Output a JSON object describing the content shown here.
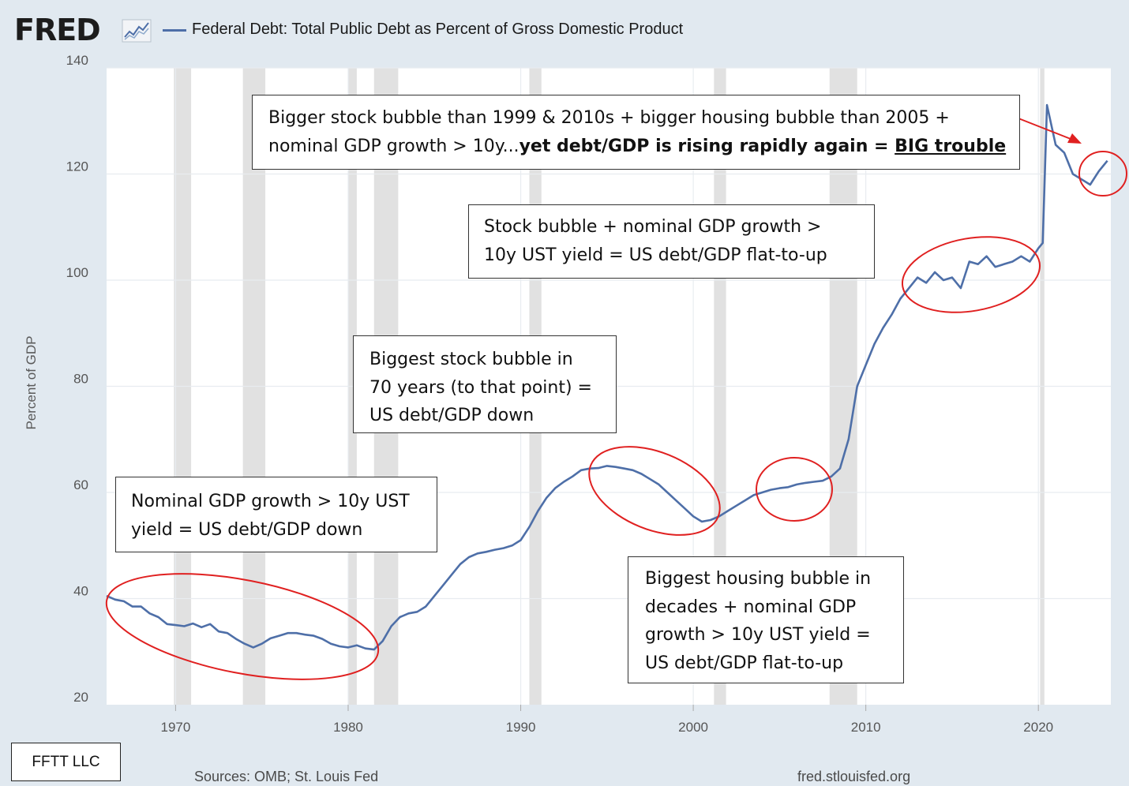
{
  "brand": {
    "logo": "FRED"
  },
  "chart_data": {
    "type": "line",
    "title": "Federal Debt: Total Public Debt as Percent of Gross Domestic Product",
    "xlabel": "",
    "ylabel": "Percent of GDP",
    "xlim": [
      1966,
      2024.2
    ],
    "ylim": [
      20,
      140
    ],
    "x_ticks": [
      1970,
      1980,
      1990,
      2000,
      2010,
      2020
    ],
    "y_ticks": [
      20,
      40,
      60,
      80,
      100,
      120,
      140
    ],
    "grid": true,
    "series": [
      {
        "name": "Federal Debt: Total Public Debt as Percent of Gross Domestic Product",
        "color": "#4e6fa8",
        "x": [
          1966.0,
          1966.5,
          1967.0,
          1967.5,
          1968.0,
          1968.5,
          1969.0,
          1969.5,
          1970.0,
          1970.5,
          1971.0,
          1971.5,
          1972.0,
          1972.5,
          1973.0,
          1973.5,
          1974.0,
          1974.5,
          1975.0,
          1975.5,
          1976.0,
          1976.5,
          1977.0,
          1977.5,
          1978.0,
          1978.5,
          1979.0,
          1979.5,
          1980.0,
          1980.5,
          1981.0,
          1981.5,
          1982.0,
          1982.5,
          1983.0,
          1983.5,
          1984.0,
          1984.5,
          1985.0,
          1985.5,
          1986.0,
          1986.5,
          1987.0,
          1987.5,
          1988.0,
          1988.5,
          1989.0,
          1989.5,
          1990.0,
          1990.5,
          1991.0,
          1991.5,
          1992.0,
          1992.5,
          1993.0,
          1993.5,
          1994.0,
          1994.5,
          1995.0,
          1995.5,
          1996.0,
          1996.5,
          1997.0,
          1997.5,
          1998.0,
          1998.5,
          1999.0,
          1999.5,
          2000.0,
          2000.5,
          2001.0,
          2001.5,
          2002.0,
          2002.5,
          2003.0,
          2003.5,
          2004.0,
          2004.5,
          2005.0,
          2005.5,
          2006.0,
          2006.5,
          2007.0,
          2007.5,
          2008.0,
          2008.5,
          2009.0,
          2009.5,
          2010.0,
          2010.5,
          2011.0,
          2011.5,
          2012.0,
          2012.5,
          2013.0,
          2013.5,
          2014.0,
          2014.5,
          2015.0,
          2015.5,
          2016.0,
          2016.5,
          2017.0,
          2017.5,
          2018.0,
          2018.5,
          2019.0,
          2019.5,
          2020.0,
          2020.25,
          2020.5,
          2021.0,
          2021.5,
          2022.0,
          2022.5,
          2023.0,
          2023.5,
          2024.0
        ],
        "values": [
          40.5,
          39.8,
          39.5,
          38.5,
          38.5,
          37.2,
          36.5,
          35.2,
          35.0,
          34.8,
          35.3,
          34.6,
          35.2,
          33.8,
          33.5,
          32.4,
          31.5,
          30.8,
          31.5,
          32.5,
          33.0,
          33.5,
          33.5,
          33.2,
          33.0,
          32.4,
          31.5,
          31.0,
          30.8,
          31.2,
          30.6,
          30.4,
          32.0,
          34.8,
          36.5,
          37.2,
          37.5,
          38.5,
          40.5,
          42.5,
          44.5,
          46.5,
          47.8,
          48.5,
          48.8,
          49.2,
          49.5,
          50.0,
          51.0,
          53.5,
          56.5,
          59.0,
          60.8,
          62.0,
          63.0,
          64.2,
          64.5,
          64.6,
          65.0,
          64.8,
          64.5,
          64.2,
          63.5,
          62.5,
          61.5,
          60.0,
          58.5,
          57.0,
          55.5,
          54.5,
          54.8,
          55.5,
          56.5,
          57.5,
          58.5,
          59.5,
          60.0,
          60.5,
          60.8,
          61.0,
          61.5,
          61.8,
          62.0,
          62.2,
          63.0,
          64.5,
          70.0,
          80.0,
          84.0,
          88.0,
          91.0,
          93.5,
          96.5,
          98.5,
          100.5,
          99.5,
          101.5,
          100.0,
          100.5,
          98.5,
          103.5,
          103.0,
          104.5,
          102.5,
          103.0,
          103.5,
          104.5,
          103.5,
          106.0,
          107.0,
          133.0,
          125.5,
          124.0,
          120.0,
          119.0,
          118.0,
          120.5,
          122.5
        ]
      }
    ],
    "recessions": [
      [
        1969.9,
        1970.9
      ],
      [
        1973.9,
        1975.2
      ],
      [
        1980.0,
        1980.5
      ],
      [
        1981.5,
        1982.9
      ],
      [
        1990.5,
        1991.2
      ],
      [
        2001.2,
        2001.9
      ],
      [
        2007.9,
        2009.5
      ],
      [
        2020.1,
        2020.35
      ]
    ],
    "annotations": [
      {
        "line1": "Nominal GDP growth > 10y UST",
        "line2": "yield = US debt/GDP down"
      },
      {
        "line1": "Biggest stock bubble in",
        "line2": "70 years (to that point) =",
        "line3": "US debt/GDP down"
      },
      {
        "line1": "Stock bubble + nominal GDP growth >",
        "line2": "10y UST yield = US debt/GDP flat-to-up"
      },
      {
        "line1": "Bigger stock bubble than 1999 & 2010s + bigger housing bubble than 2005 +",
        "line2_plain": "nominal GDP growth > 10y...",
        "line2_bold": "yet debt/GDP is rising rapidly again = ",
        "line2_underlined": "BIG trouble"
      },
      {
        "line1": "Biggest housing bubble in",
        "line2": "decades + nominal GDP",
        "line3": "growth > 10y UST yield =",
        "line4": "US debt/GDP flat-to-up"
      }
    ],
    "highlight_color": "#e02020"
  },
  "footer": {
    "sources": "Sources: OMB; St. Louis Fed",
    "url": "fred.stlouisfed.org",
    "watermark": "FFTT LLC"
  }
}
